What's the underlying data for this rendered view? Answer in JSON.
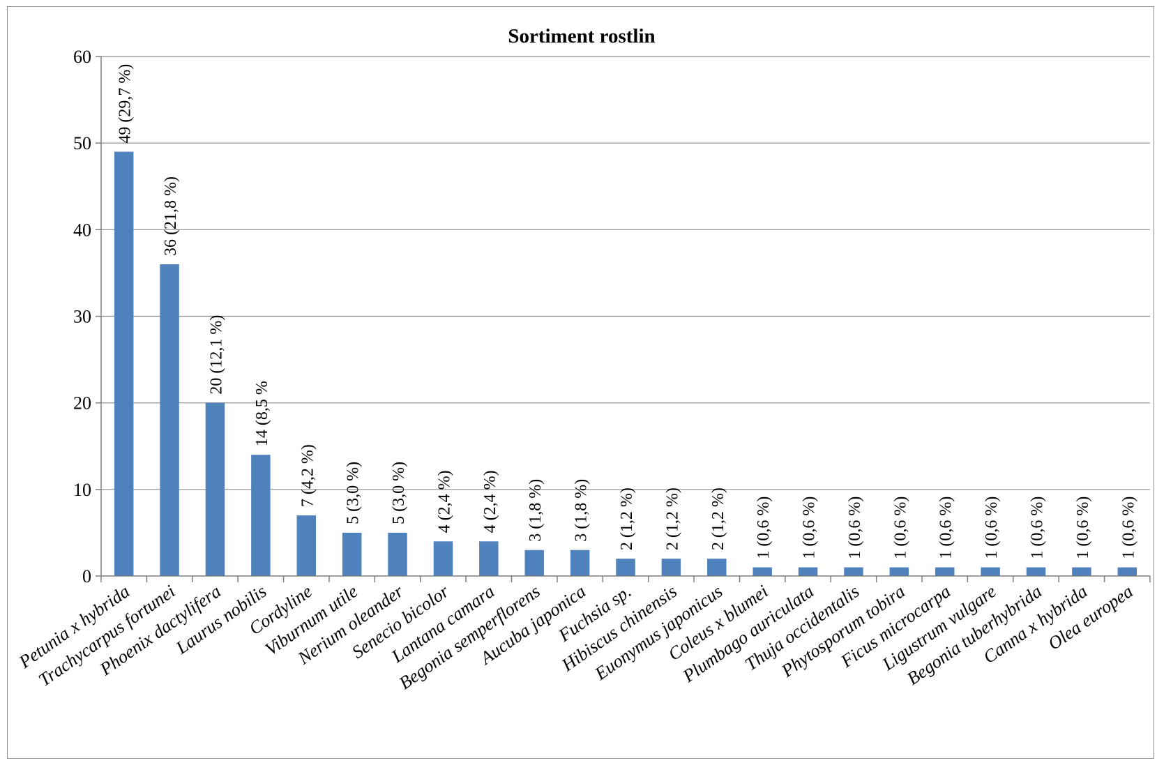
{
  "chart_data": {
    "type": "bar",
    "title": "Sortiment rostlin",
    "xlabel": "",
    "ylabel": "",
    "ylim": [
      0,
      60
    ],
    "yticks": [
      "0",
      "10",
      "20",
      "30",
      "40",
      "50",
      "60"
    ],
    "grid": true,
    "legend": "none",
    "bar_color": "#4f81bd",
    "categories": [
      "Petunia x hybrida",
      "Trachycarpus fortunei",
      "Phoenix dactylifera",
      "Laurus nobilis",
      "Cordyline",
      "Viburnum utile",
      "Nerium oleander",
      "Senecio bicolor",
      "Lantana camara",
      "Begonia semperflorens",
      "Aucuba japonica",
      "Fuchsia sp.",
      "Hibiscus chinensis",
      "Euonymus japonicus",
      "Coleus x blumei",
      "Plumbago auriculata",
      "Thuja occidentalis",
      "Phytosporum tobira",
      "Ficus microcarpa",
      "Ligustrum vulgare",
      "Begonia tuberhybrida",
      "Canna x hybrida",
      "Olea europea"
    ],
    "values": [
      49,
      36,
      20,
      14,
      7,
      5,
      5,
      4,
      4,
      3,
      3,
      2,
      2,
      2,
      1,
      1,
      1,
      1,
      1,
      1,
      1,
      1,
      1
    ],
    "data_labels": [
      "49 (29,7 %)",
      "36 (21,8 %)",
      "20 (12,1 %)",
      "14 (8,5 %",
      "7 (4,2 %)",
      "5 (3,0 %)",
      "5 (3,0 %)",
      "4 (2,4 %)",
      "4 (2,4 %)",
      "3 (1,8 %)",
      "3 (1,8 %)",
      "2 (1,2 %)",
      "2 (1,2 %)",
      "2 (1,2 %)",
      "1 (0,6 %)",
      "1 (0,6 %)",
      "1 (0,6 %)",
      "1 (0,6 %)",
      "1 (0,6 %)",
      "1 (0,6 %)",
      "1 (0,6 %)",
      "1 (0,6 %)",
      "1 (0,6 %)"
    ]
  }
}
